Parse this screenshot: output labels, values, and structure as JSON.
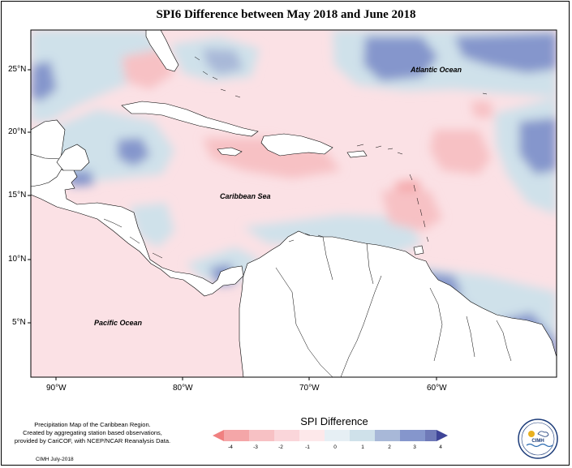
{
  "title": "SPI6 Difference between May 2018 and June 2018",
  "axes": {
    "lat_labels": [
      "25°N",
      "20°N",
      "15°N",
      "10°N",
      "5°N"
    ],
    "lon_labels": [
      "90°W",
      "80°W",
      "70°W",
      "60°W"
    ]
  },
  "places": {
    "atlantic": "Atlantic Ocean",
    "caribbean": "Caribbean Sea",
    "pacific": "Pacific Ocean"
  },
  "credits": {
    "line1": "Precipitation Map of the Caribbean Region.",
    "line2": "Created by aggregating station based observations,",
    "line3": "provided by CariCOF, with NCEP/NCAR Reanalysis Data.",
    "date": "CIMH July-2018"
  },
  "legend": {
    "title": "SPI Difference",
    "ticks": [
      "-4",
      "-3",
      "-2",
      "-1",
      "0",
      "1",
      "2",
      "3",
      "4"
    ],
    "colors": {
      "neg_low": "#f08080",
      "neg3": "#f4a6a8",
      "neg2": "#f7c1c4",
      "neg1": "#fad6da",
      "pos1": "#cfe1ea",
      "pos2": "#a8b8d8",
      "pos3": "#8596cc",
      "pos4": "#6f7ab8",
      "pos_high": "#3f4598"
    }
  },
  "logo": {
    "text": "CIMH"
  }
}
